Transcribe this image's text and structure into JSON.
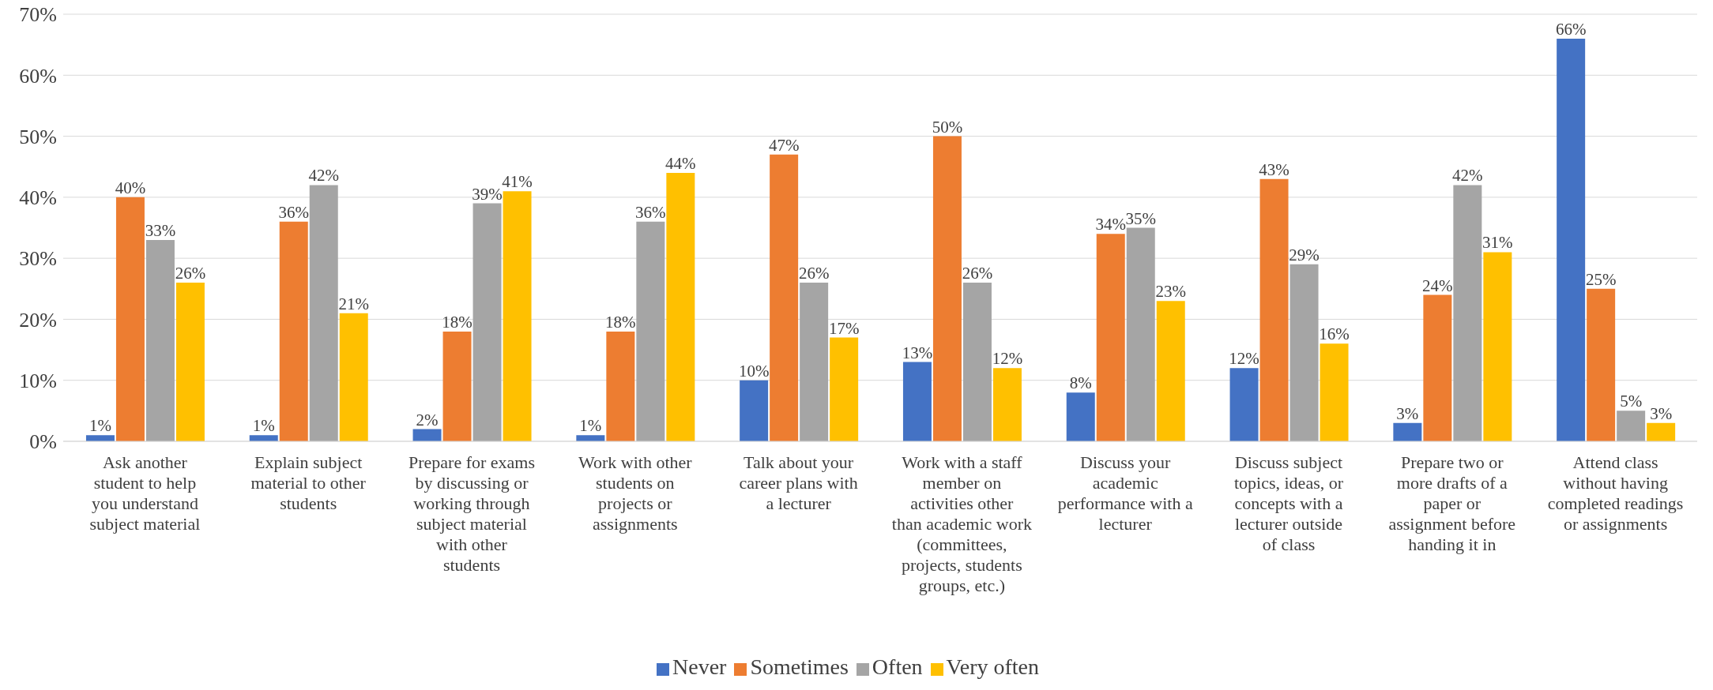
{
  "chart_data": {
    "type": "bar",
    "categories": [
      "Ask another student to help you understand subject material",
      "Explain subject material to other students",
      "Prepare for exams by discussing or working through subject material with other students",
      "Work with other students on projects or assignments",
      "Talk about your career plans with a lecturer",
      "Work with a staff member on activities other than academic work (committees, projects, students groups, etc.)",
      "Discuss your academic performance with a lecturer",
      "Discuss subject topics, ideas, or concepts with a lecturer outside of class",
      "Prepare two or more drafts of a paper or assignment before handing it in",
      "Attend class without having completed readings or assignments"
    ],
    "series": [
      {
        "name": "Never",
        "color": "#4472c4",
        "values": [
          1,
          1,
          2,
          1,
          10,
          13,
          8,
          12,
          3,
          66
        ],
        "value_labels": [
          "1%",
          "1%",
          "2%",
          "1%",
          "10%",
          "13%",
          "8%",
          "12%",
          "3%",
          "66%"
        ]
      },
      {
        "name": "Sometimes",
        "color": "#ed7d31",
        "values": [
          40,
          36,
          18,
          18,
          47,
          50,
          34,
          43,
          24,
          25
        ],
        "value_labels": [
          "40%",
          "36%",
          "18%",
          "18%",
          "47%",
          "50%",
          "34%",
          "43%",
          "24%",
          "25%"
        ]
      },
      {
        "name": "Often",
        "color": "#a5a5a5",
        "values": [
          33,
          42,
          39,
          36,
          26,
          26,
          35,
          29,
          42,
          5
        ],
        "value_labels": [
          "33%",
          "42%",
          "39%",
          "36%",
          "26%",
          "26%",
          "35%",
          "29%",
          "42%",
          "5%"
        ]
      },
      {
        "name": "Very often",
        "color": "#ffc000",
        "values": [
          26,
          21,
          41,
          44,
          17,
          12,
          23,
          16,
          31,
          3
        ],
        "value_labels": [
          "26%",
          "21%",
          "41%",
          "44%",
          "17%",
          "12%",
          "23%",
          "16%",
          "31%",
          "3%"
        ]
      }
    ],
    "ylim": [
      0,
      70
    ],
    "yticks": [
      {
        "value": 0,
        "label": "0%"
      },
      {
        "value": 10,
        "label": "10%"
      },
      {
        "value": 20,
        "label": "20%"
      },
      {
        "value": 30,
        "label": "30%"
      },
      {
        "value": 40,
        "label": "40%"
      },
      {
        "value": 50,
        "label": "50%"
      },
      {
        "value": 60,
        "label": "60%"
      },
      {
        "value": 70,
        "label": "70%"
      }
    ],
    "grid": "y",
    "legend": "bottom"
  }
}
